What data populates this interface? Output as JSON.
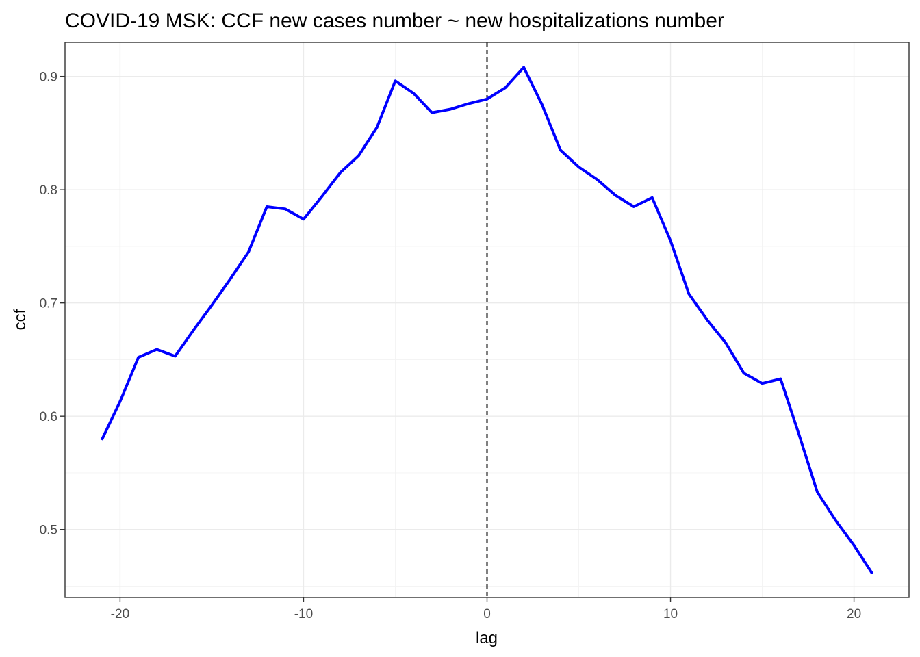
{
  "chart_data": {
    "type": "line",
    "title": "COVID-19 MSK: CCF new cases number ~ new hospitalizations number",
    "xlabel": "lag",
    "ylabel": "ccf",
    "xlim": [
      -23,
      23
    ],
    "ylim": [
      0.44,
      0.93
    ],
    "x_ticks": [
      -20,
      -10,
      0,
      10,
      20
    ],
    "x_tick_labels": [
      "-20",
      "-10",
      "0",
      "10",
      "20"
    ],
    "y_ticks": [
      0.5,
      0.6,
      0.7,
      0.8,
      0.9
    ],
    "y_tick_labels": [
      "0.5",
      "0.6",
      "0.7",
      "0.8",
      "0.9"
    ],
    "grid": true,
    "reference_line": {
      "x": 0,
      "style": "dashed",
      "color": "#000000"
    },
    "series": [
      {
        "color": "#0000ff",
        "x": [
          -21,
          -20,
          -19,
          -18,
          -17,
          -16,
          -15,
          -14,
          -13,
          -12,
          -11,
          -10,
          -9,
          -8,
          -7,
          -6,
          -5,
          -4,
          -3,
          -2,
          -1,
          0,
          1,
          2,
          3,
          4,
          5,
          6,
          7,
          8,
          9,
          10,
          11,
          12,
          13,
          14,
          15,
          16,
          17,
          18,
          19,
          20,
          21
        ],
        "values": [
          0.579,
          0.613,
          0.652,
          0.659,
          0.653,
          0.676,
          0.698,
          0.721,
          0.745,
          0.785,
          0.783,
          0.774,
          0.794,
          0.815,
          0.83,
          0.855,
          0.896,
          0.885,
          0.868,
          0.871,
          0.876,
          0.88,
          0.89,
          0.908,
          0.875,
          0.835,
          0.82,
          0.809,
          0.795,
          0.785,
          0.793,
          0.755,
          0.708,
          0.685,
          0.665,
          0.638,
          0.629,
          0.633,
          0.584,
          0.533,
          0.508,
          0.486,
          0.461
        ]
      }
    ]
  }
}
